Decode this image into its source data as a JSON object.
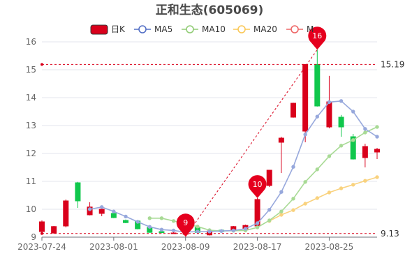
{
  "chart_data": {
    "type": "candlestick",
    "title": "正和生态(605069)",
    "legend": [
      {
        "name": "日K",
        "color": "#d9001b",
        "shape": "rect"
      },
      {
        "name": "MA5",
        "color": "#5470c6",
        "shape": "circle-line"
      },
      {
        "name": "MA10",
        "color": "#91cc75",
        "shape": "circle-line"
      },
      {
        "name": "MA20",
        "color": "#fac858",
        "shape": "circle-line"
      },
      {
        "name": "M",
        "color": "#ee6666",
        "shape": "circle-line"
      }
    ],
    "colors": {
      "up": "#d9001b",
      "down": "#10c74c",
      "ma5": "#97a8dc",
      "ma10": "#a8da95",
      "ma20": "#f9d27e",
      "markline": "#d9001b",
      "pin": "#e5001e"
    },
    "ylim": [
      9,
      16
    ],
    "y_ticks": [
      "9",
      "10",
      "11",
      "12",
      "13",
      "14",
      "15",
      "16"
    ],
    "x_tick_labels": [
      "2023-07-24",
      "2023-08-01",
      "2023-08-09",
      "2023-08-17",
      "2023-08-25"
    ],
    "x_tick_index": [
      0,
      6,
      12,
      18,
      24
    ],
    "candles": [
      {
        "o": 9.2,
        "c": 9.55,
        "h": 9.6,
        "l": 9.15
      },
      {
        "o": 9.15,
        "c": 9.38,
        "h": 9.4,
        "l": 9.12
      },
      {
        "o": 9.4,
        "c": 10.3,
        "h": 10.35,
        "l": 9.35
      },
      {
        "o": 10.95,
        "c": 10.3,
        "h": 10.98,
        "l": 10.05
      },
      {
        "o": 9.8,
        "c": 10.08,
        "h": 10.25,
        "l": 9.78
      },
      {
        "o": 9.85,
        "c": 10.0,
        "h": 10.05,
        "l": 9.75
      },
      {
        "o": 9.85,
        "c": 9.7,
        "h": 9.9,
        "l": 9.68
      },
      {
        "o": 9.6,
        "c": 9.52,
        "h": 9.63,
        "l": 9.5
      },
      {
        "o": 9.58,
        "c": 9.3,
        "h": 9.6,
        "l": 9.28
      },
      {
        "o": 9.35,
        "c": 9.17,
        "h": 9.38,
        "l": 9.16
      },
      {
        "o": 9.2,
        "c": 9.16,
        "h": 9.22,
        "l": 9.14
      },
      {
        "o": 9.15,
        "c": 9.15,
        "h": 9.2,
        "l": 9.12
      },
      {
        "o": 9.1,
        "c": 9.28,
        "h": 9.3,
        "l": 9.02
      },
      {
        "o": 9.35,
        "c": 9.17,
        "h": 9.4,
        "l": 9.16
      },
      {
        "o": 9.08,
        "c": 9.22,
        "h": 9.25,
        "l": 9.06
      },
      {
        "o": 9.25,
        "c": 9.2,
        "h": 9.28,
        "l": 9.19
      },
      {
        "o": 9.25,
        "c": 9.38,
        "h": 9.4,
        "l": 9.22
      },
      {
        "o": 9.3,
        "c": 9.42,
        "h": 9.45,
        "l": 9.28
      },
      {
        "o": 9.4,
        "c": 10.35,
        "h": 10.4,
        "l": 9.35
      },
      {
        "o": 10.85,
        "c": 11.4,
        "h": 11.4,
        "l": 10.8
      },
      {
        "o": 12.4,
        "c": 12.55,
        "h": 12.6,
        "l": 11.3
      },
      {
        "o": 13.3,
        "c": 13.8,
        "h": 13.82,
        "l": 13.28
      },
      {
        "o": 12.8,
        "c": 15.19,
        "h": 15.19,
        "l": 12.4
      },
      {
        "o": 15.19,
        "c": 13.7,
        "h": 15.72,
        "l": 13.68
      },
      {
        "o": 12.95,
        "c": 13.85,
        "h": 14.78,
        "l": 12.9
      },
      {
        "o": 13.3,
        "c": 12.95,
        "h": 13.38,
        "l": 12.6
      },
      {
        "o": 12.6,
        "c": 11.8,
        "h": 12.7,
        "l": 11.78
      },
      {
        "o": 11.85,
        "c": 12.25,
        "h": 12.35,
        "l": 11.5
      },
      {
        "o": 12.05,
        "c": 12.15,
        "h": 12.2,
        "l": 11.8
      }
    ],
    "ma5": [
      null,
      null,
      null,
      null,
      10.0,
      10.08,
      9.92,
      9.74,
      9.55,
      9.37,
      9.27,
      9.24,
      9.18,
      9.2,
      9.2,
      9.22,
      9.24,
      9.3,
      9.5,
      9.98,
      10.62,
      11.52,
      12.68,
      13.32,
      13.84,
      13.88,
      13.5,
      12.88,
      12.6
    ],
    "ma10": [
      null,
      null,
      null,
      null,
      null,
      null,
      null,
      null,
      null,
      9.68,
      9.68,
      9.58,
      9.48,
      9.38,
      9.25,
      9.22,
      9.23,
      9.24,
      9.35,
      9.6,
      9.92,
      10.38,
      10.98,
      11.43,
      11.9,
      12.28,
      12.48,
      12.75,
      12.95
    ],
    "ma20": [
      null,
      null,
      null,
      null,
      null,
      null,
      null,
      null,
      null,
      null,
      null,
      null,
      null,
      null,
      null,
      null,
      null,
      null,
      null,
      9.58,
      9.8,
      9.97,
      10.2,
      10.4,
      10.6,
      10.75,
      10.88,
      11.02,
      11.15
    ],
    "hlines": [
      {
        "value": 15.19,
        "label": "15.19"
      },
      {
        "value": 9.13,
        "label": "9.13"
      }
    ],
    "pins": [
      {
        "index": 23,
        "value": 15.72,
        "label": "16"
      },
      {
        "index": 18,
        "value": 10.4,
        "label": "10"
      },
      {
        "index": 12,
        "value": 9.02,
        "label": "9"
      }
    ],
    "trend_line": {
      "from_index": 12,
      "from_value": 9.02,
      "to_index": 23,
      "to_value": 15.72
    }
  }
}
